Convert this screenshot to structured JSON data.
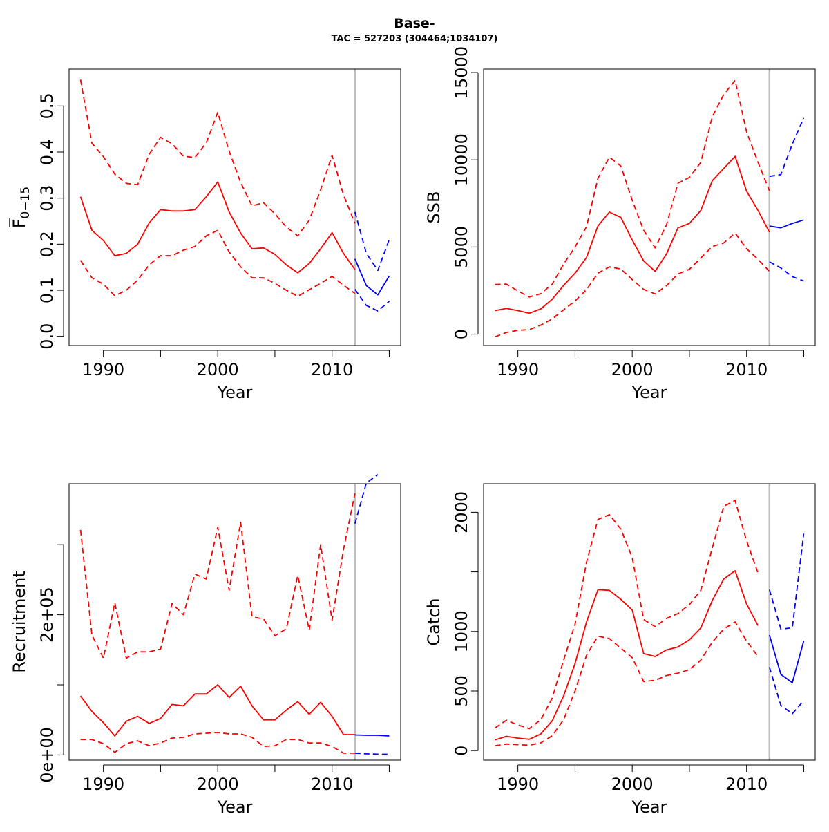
{
  "title": "Base-",
  "subtitle": "TAC = 527203 (304464;1034107)",
  "colors": {
    "historical": "#ff0000",
    "forecast": "#0000ff",
    "divider": "#bebebe"
  },
  "chart_data": [
    {
      "type": "line",
      "id": "f",
      "xlabel": "Year",
      "ylabel": "F̅",
      "ylabel_sub": "0−15",
      "xlim": [
        1987,
        2016
      ],
      "ylim": [
        -0.02,
        0.58
      ],
      "yticks": [
        0.0,
        0.1,
        0.2,
        0.3,
        0.4,
        0.5
      ],
      "ytick_labels": [
        "0.0",
        "0.1",
        "0.2",
        "0.3",
        "0.4",
        "0.5"
      ],
      "xticks": [
        1990,
        1995,
        2000,
        2005,
        2010,
        2015
      ],
      "xtick_labels": [
        "1990",
        "",
        "2000",
        "",
        "2010",
        ""
      ],
      "divider_year": 2012,
      "series": [
        {
          "role": "estimate",
          "x": [
            1988,
            1989,
            1990,
            1991,
            1992,
            1993,
            1994,
            1995,
            1996,
            1997,
            1998,
            1999,
            2000,
            2001,
            2002,
            2003,
            2004,
            2005,
            2006,
            2007,
            2008,
            2009,
            2010,
            2011,
            2012
          ],
          "values": [
            0.303,
            0.23,
            0.208,
            0.175,
            0.18,
            0.2,
            0.246,
            0.275,
            0.272,
            0.272,
            0.275,
            0.303,
            0.335,
            0.27,
            0.224,
            0.19,
            0.192,
            0.178,
            0.155,
            0.138,
            0.158,
            0.19,
            0.225,
            0.18,
            0.145
          ]
        },
        {
          "role": "upper",
          "x": [
            1988,
            1989,
            1990,
            1991,
            1992,
            1993,
            1994,
            1995,
            1996,
            1997,
            1998,
            1999,
            2000,
            2001,
            2002,
            2003,
            2004,
            2005,
            2006,
            2007,
            2008,
            2009,
            2010,
            2011,
            2012
          ],
          "values": [
            0.557,
            0.419,
            0.39,
            0.352,
            0.332,
            0.329,
            0.395,
            0.432,
            0.418,
            0.391,
            0.388,
            0.42,
            0.486,
            0.402,
            0.334,
            0.283,
            0.29,
            0.266,
            0.237,
            0.218,
            0.252,
            0.318,
            0.393,
            0.307,
            0.245
          ]
        },
        {
          "role": "lower",
          "x": [
            1988,
            1989,
            1990,
            1991,
            1992,
            1993,
            1994,
            1995,
            1996,
            1997,
            1998,
            1999,
            2000,
            2001,
            2002,
            2003,
            2004,
            2005,
            2006,
            2007,
            2008,
            2009,
            2010,
            2011,
            2012
          ],
          "values": [
            0.165,
            0.127,
            0.113,
            0.088,
            0.1,
            0.122,
            0.155,
            0.175,
            0.175,
            0.187,
            0.195,
            0.218,
            0.23,
            0.183,
            0.151,
            0.127,
            0.127,
            0.115,
            0.1,
            0.087,
            0.101,
            0.115,
            0.13,
            0.111,
            0.093
          ]
        },
        {
          "role": "forecast",
          "x": [
            2012,
            2013,
            2014,
            2015
          ],
          "values": [
            0.168,
            0.11,
            0.09,
            0.131
          ]
        },
        {
          "role": "forecast_upper",
          "x": [
            2012,
            2013,
            2014,
            2015
          ],
          "values": [
            0.27,
            0.18,
            0.143,
            0.21
          ]
        },
        {
          "role": "forecast_lower",
          "x": [
            2012,
            2013,
            2014,
            2015
          ],
          "values": [
            0.102,
            0.067,
            0.055,
            0.076
          ]
        }
      ]
    },
    {
      "type": "line",
      "id": "ssb",
      "xlabel": "Year",
      "ylabel": "SSB",
      "xlim": [
        1987,
        2016
      ],
      "ylim": [
        -650,
        15200
      ],
      "yticks": [
        0,
        5000,
        10000,
        15000
      ],
      "ytick_labels": [
        "0",
        "5000",
        "10000",
        "15000"
      ],
      "xticks": [
        1990,
        1995,
        2000,
        2005,
        2010,
        2015
      ],
      "xtick_labels": [
        "1990",
        "",
        "2000",
        "",
        "2010",
        ""
      ],
      "divider_year": 2012,
      "series": [
        {
          "role": "estimate",
          "x": [
            1988,
            1989,
            1990,
            1991,
            1992,
            1993,
            1994,
            1995,
            1996,
            1997,
            1998,
            1999,
            2000,
            2001,
            2002,
            2003,
            2004,
            2005,
            2006,
            2007,
            2008,
            2009,
            2010,
            2011,
            2012
          ],
          "values": [
            1350,
            1480,
            1350,
            1200,
            1450,
            2000,
            2800,
            3500,
            4400,
            6200,
            7000,
            6700,
            5400,
            4200,
            3600,
            4600,
            6100,
            6350,
            7100,
            8800,
            9500,
            10200,
            8200,
            7100,
            5850
          ]
        },
        {
          "role": "upper",
          "x": [
            1988,
            1989,
            1990,
            1991,
            1992,
            1993,
            1994,
            1995,
            1996,
            1997,
            1998,
            1999,
            2000,
            2001,
            2002,
            2003,
            2004,
            2005,
            2006,
            2007,
            2008,
            2009,
            2010,
            2011,
            2012
          ],
          "values": [
            2850,
            2870,
            2480,
            2130,
            2320,
            2870,
            4020,
            5000,
            6160,
            8930,
            10150,
            9650,
            7680,
            5960,
            4950,
            6270,
            8660,
            8990,
            9860,
            12470,
            13740,
            14550,
            11610,
            9860,
            8220
          ]
        },
        {
          "role": "lower",
          "x": [
            1988,
            1989,
            1990,
            1991,
            1992,
            1993,
            1994,
            1995,
            1996,
            1997,
            1998,
            1999,
            2000,
            2001,
            2002,
            2003,
            2004,
            2005,
            2006,
            2007,
            2008,
            2009,
            2010,
            2011,
            2012
          ],
          "values": [
            -150,
            100,
            220,
            260,
            520,
            870,
            1400,
            1900,
            2560,
            3500,
            3860,
            3740,
            3130,
            2570,
            2310,
            2780,
            3450,
            3720,
            4370,
            5030,
            5230,
            5800,
            4900,
            4290,
            3600
          ]
        },
        {
          "role": "forecast",
          "x": [
            2012,
            2013,
            2014,
            2015
          ],
          "values": [
            6200,
            6100,
            6350,
            6550
          ]
        },
        {
          "role": "forecast_upper",
          "x": [
            2012,
            2013,
            2014,
            2015
          ],
          "values": [
            9050,
            9150,
            10900,
            12400
          ]
        },
        {
          "role": "forecast_lower",
          "x": [
            2012,
            2013,
            2014,
            2015
          ],
          "values": [
            4150,
            3800,
            3300,
            3050
          ]
        }
      ]
    },
    {
      "type": "line",
      "id": "recruitment",
      "xlabel": "Year",
      "ylabel": "Recruitment",
      "xlim": [
        1987,
        2016
      ],
      "ylim": [
        -7500,
        387000
      ],
      "yticks": [
        0,
        100000,
        200000,
        300000
      ],
      "ytick_labels": [
        "0e+00",
        "",
        "2e+05",
        ""
      ],
      "xticks": [
        1990,
        1995,
        2000,
        2005,
        2010,
        2015
      ],
      "xtick_labels": [
        "1990",
        "",
        "2000",
        "",
        "2010",
        ""
      ],
      "divider_year": 2012,
      "series": [
        {
          "role": "estimate",
          "x": [
            1988,
            1989,
            1990,
            1991,
            1992,
            1993,
            1994,
            1995,
            1996,
            1997,
            1998,
            1999,
            2000,
            2001,
            2002,
            2003,
            2004,
            2005,
            2006,
            2007,
            2008,
            2009,
            2010,
            2011,
            2012
          ],
          "values": [
            84000,
            62000,
            46000,
            27000,
            48000,
            55000,
            45000,
            52000,
            72000,
            70000,
            87000,
            87000,
            100000,
            82000,
            98000,
            70000,
            50000,
            50000,
            64000,
            76000,
            58000,
            75000,
            55000,
            29000,
            29000
          ]
        },
        {
          "role": "upper",
          "x": [
            1988,
            1989,
            1990,
            1991,
            1992,
            1993,
            1994,
            1995,
            1996,
            1997,
            1998,
            1999,
            2000,
            2001,
            2002,
            2003,
            2004,
            2005,
            2006,
            2007,
            2008,
            2009,
            2010,
            2011,
            2012
          ],
          "values": [
            321000,
            171000,
            138000,
            217000,
            138000,
            147000,
            147000,
            151000,
            216000,
            200000,
            258000,
            251000,
            325000,
            235000,
            332000,
            197000,
            194000,
            170000,
            180000,
            256000,
            178000,
            300000,
            192000,
            293000,
            373000
          ]
        },
        {
          "role": "lower",
          "x": [
            1988,
            1989,
            1990,
            1991,
            1992,
            1993,
            1994,
            1995,
            1996,
            1997,
            1998,
            1999,
            2000,
            2001,
            2002,
            2003,
            2004,
            2005,
            2006,
            2007,
            2008,
            2009,
            2010,
            2011,
            2012
          ],
          "values": [
            22000,
            22000,
            16000,
            3500,
            16000,
            20000,
            13000,
            17000,
            24000,
            25000,
            30000,
            31000,
            32000,
            30000,
            30000,
            25000,
            12000,
            13000,
            22000,
            22000,
            17000,
            17000,
            12000,
            2500,
            2500
          ]
        },
        {
          "role": "forecast",
          "x": [
            2012,
            2013,
            2014,
            2015
          ],
          "values": [
            28500,
            28000,
            28000,
            27000
          ]
        },
        {
          "role": "forecast_upper",
          "x": [
            2012,
            2013,
            2014
          ],
          "values": [
            330000,
            388000,
            400000
          ]
        },
        {
          "role": "forecast_lower",
          "x": [
            2012,
            2013,
            2014,
            2015
          ],
          "values": [
            2500,
            1500,
            1000,
            800
          ]
        }
      ]
    },
    {
      "type": "line",
      "id": "catch",
      "xlabel": "Year",
      "ylabel": "Catch",
      "xlim": [
        1987,
        2016
      ],
      "ylim": [
        -80,
        2240
      ],
      "yticks": [
        0,
        500,
        1000,
        1500,
        2000
      ],
      "ytick_labels": [
        "0",
        "500",
        "1000",
        "",
        "2000"
      ],
      "xticks": [
        1990,
        1995,
        2000,
        2005,
        2010,
        2015
      ],
      "xtick_labels": [
        "1990",
        "",
        "2000",
        "",
        "2010",
        ""
      ],
      "divider_year": 2012,
      "series": [
        {
          "role": "estimate",
          "x": [
            1988,
            1989,
            1990,
            1991,
            1992,
            1993,
            1994,
            1995,
            1996,
            1997,
            1998,
            1999,
            2000,
            2001,
            2002,
            2003,
            2004,
            2005,
            2006,
            2007,
            2008,
            2009,
            2010,
            2011
          ],
          "values": [
            90,
            120,
            105,
            95,
            140,
            250,
            460,
            730,
            1080,
            1350,
            1345,
            1270,
            1180,
            815,
            790,
            845,
            870,
            930,
            1030,
            1260,
            1440,
            1510,
            1230,
            1050
          ]
        },
        {
          "role": "upper",
          "x": [
            1988,
            1989,
            1990,
            1991,
            1992,
            1993,
            1994,
            1995,
            1996,
            1997,
            1998,
            1999,
            2000,
            2001,
            2002,
            2003,
            2004,
            2005,
            2006,
            2007,
            2008,
            2009,
            2010,
            2011
          ],
          "values": [
            190,
            255,
            215,
            185,
            260,
            440,
            760,
            1060,
            1580,
            1940,
            1980,
            1860,
            1620,
            1100,
            1040,
            1110,
            1150,
            1225,
            1345,
            1700,
            2050,
            2100,
            1760,
            1490
          ]
        },
        {
          "role": "lower",
          "x": [
            1988,
            1989,
            1990,
            1991,
            1992,
            1993,
            1994,
            1995,
            1996,
            1997,
            1998,
            1999,
            2000,
            2001,
            2002,
            2003,
            2004,
            2005,
            2006,
            2007,
            2008,
            2009,
            2010,
            2011
          ],
          "values": [
            40,
            55,
            50,
            45,
            65,
            125,
            260,
            500,
            800,
            960,
            940,
            860,
            780,
            580,
            590,
            630,
            650,
            680,
            760,
            910,
            1020,
            1080,
            920,
            790
          ]
        },
        {
          "role": "forecast",
          "x": [
            2012,
            2013,
            2014,
            2015
          ],
          "values": [
            970,
            640,
            570,
            920
          ]
        },
        {
          "role": "forecast_upper",
          "x": [
            2012,
            2013,
            2014,
            2015
          ],
          "values": [
            1350,
            1020,
            1030,
            1820
          ]
        },
        {
          "role": "forecast_lower",
          "x": [
            2012,
            2013,
            2014,
            2015
          ],
          "values": [
            700,
            380,
            310,
            420
          ]
        }
      ]
    }
  ]
}
